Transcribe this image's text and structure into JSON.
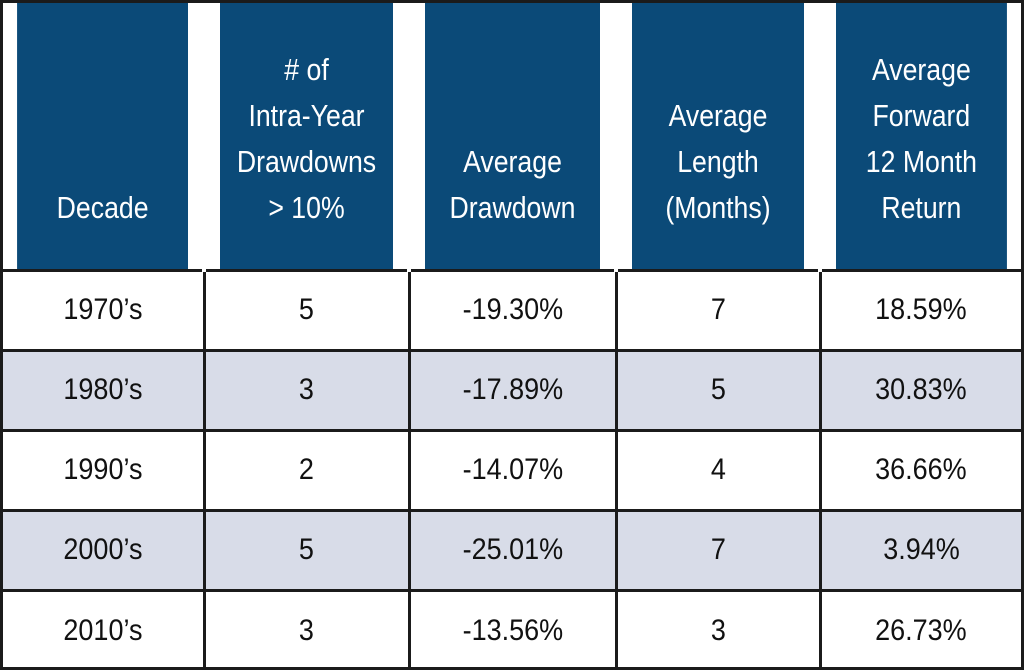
{
  "chart_data": {
    "type": "table",
    "columns": [
      "Decade",
      "# of\nIntra-Year\nDrawdowns\n> 10%",
      "Average\nDrawdown",
      "Average\nLength\n(Months)",
      "Average\nForward\n12 Month\nReturn"
    ],
    "rows": [
      [
        "1970’s",
        "5",
        "-19.30%",
        "7",
        "18.59%"
      ],
      [
        "1980’s",
        "3",
        "-17.89%",
        "5",
        "30.83%"
      ],
      [
        "1990’s",
        "2",
        "-14.07%",
        "4",
        "36.66%"
      ],
      [
        "2000’s",
        "5",
        "-25.01%",
        "7",
        "3.94%"
      ],
      [
        "2010’s",
        "3",
        "-13.56%",
        "3",
        "26.73%"
      ]
    ]
  },
  "colors": {
    "header_bg": "#0b4a78",
    "header_text": "#ffffff",
    "stripe_bg": "#d8dce8",
    "border": "#1b1b1b"
  }
}
